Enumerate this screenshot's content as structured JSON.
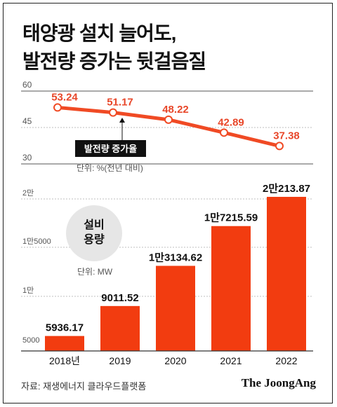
{
  "title_line1": "태양광 설치 늘어도,",
  "title_line2": "발전량 증가는 뒷걸음질",
  "source": "자료: 재생에너지 클라우드플랫폼",
  "brand": "The JoongAng",
  "colors": {
    "accent": "#f04a24",
    "bar": "#f23c10",
    "label": "#e8472a",
    "text": "#111111",
    "axis": "#555555"
  },
  "chart_data": [
    {
      "type": "line",
      "x": [
        "2018년",
        "2019",
        "2020",
        "2021",
        "2022"
      ],
      "values": [
        53.24,
        51.17,
        48.22,
        42.89,
        37.38
      ],
      "ylim": [
        30,
        60
      ],
      "yticks": [
        "30",
        "45",
        "60"
      ],
      "unit": "단위: %(전년 대비)",
      "series_label": "발전량 증가율",
      "grid": true
    },
    {
      "type": "bar",
      "categories": [
        "2018년",
        "2019",
        "2020",
        "2021",
        "2022"
      ],
      "values": [
        5936.17,
        9011.52,
        13134.62,
        17215.59,
        20213.87
      ],
      "value_labels": [
        "5936.17",
        "9011.52",
        "1만3134.62",
        "1만7215.59",
        "2만213.87"
      ],
      "ylim": [
        5000,
        20000
      ],
      "yticks": [
        "5000",
        "1만",
        "1만5000",
        "2만"
      ],
      "unit": "단위: MW",
      "series_label_lines": [
        "설비",
        "용량"
      ],
      "grid": true
    }
  ]
}
